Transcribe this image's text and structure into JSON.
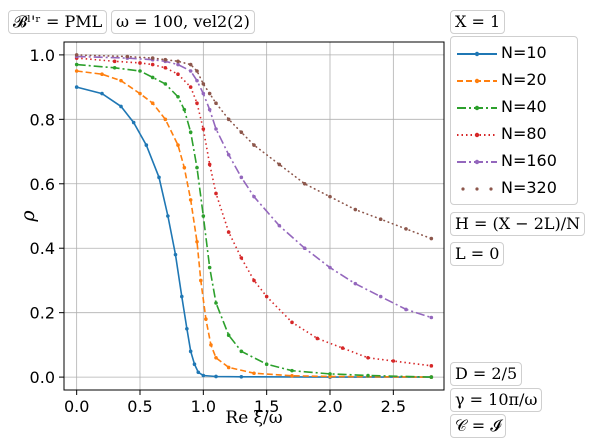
{
  "annotations": {
    "boundary": "𝓑ˡ'ʳ = PML",
    "omega_vel": "ω = 100, vel2(2)",
    "X": "X = 1",
    "H": "H = (X − 2L)/N",
    "L": "L = 0",
    "D": "D = 2/5",
    "gamma": "γ = 10π/ω",
    "C": "𝒞 = 𝓘"
  },
  "colors": {
    "N10": "#1f77b4",
    "N20": "#ff7f0e",
    "N40": "#2ca02c",
    "N80": "#d62728",
    "N160": "#9467bd",
    "N320": "#8c564b"
  },
  "chart_data": {
    "type": "line",
    "xlabel": "Re ξ/ω",
    "ylabel": "ρ",
    "xlim": [
      -0.1,
      2.9
    ],
    "ylim": [
      -0.04,
      1.04
    ],
    "xticks": [
      "0.0",
      "0.5",
      "1.0",
      "1.5",
      "2.0",
      "2.5"
    ],
    "yticks": [
      "0.0",
      "0.2",
      "0.4",
      "0.6",
      "0.8",
      "1.0"
    ],
    "grid": true,
    "legend_position": "right",
    "series": [
      {
        "name": "N=10",
        "color_key": "N10",
        "line_style": "solid",
        "marker": "dot",
        "x": [
          0.0,
          0.2,
          0.35,
          0.45,
          0.55,
          0.65,
          0.72,
          0.78,
          0.83,
          0.87,
          0.9,
          0.93,
          0.96,
          1.0,
          1.1,
          1.3,
          2.0,
          2.8
        ],
        "y": [
          0.9,
          0.88,
          0.84,
          0.79,
          0.72,
          0.62,
          0.5,
          0.38,
          0.25,
          0.15,
          0.08,
          0.04,
          0.015,
          0.005,
          0.002,
          0.001,
          0.0,
          0.0
        ]
      },
      {
        "name": "N=20",
        "color_key": "N20",
        "line_style": "dashed",
        "marker": "dot",
        "x": [
          0.0,
          0.2,
          0.35,
          0.5,
          0.6,
          0.7,
          0.8,
          0.85,
          0.9,
          0.95,
          0.98,
          1.02,
          1.06,
          1.1,
          1.2,
          1.4,
          1.7,
          2.0,
          2.8
        ],
        "y": [
          0.95,
          0.94,
          0.92,
          0.88,
          0.85,
          0.8,
          0.72,
          0.65,
          0.55,
          0.42,
          0.3,
          0.18,
          0.1,
          0.06,
          0.03,
          0.012,
          0.004,
          0.002,
          0.0
        ]
      },
      {
        "name": "N=40",
        "color_key": "N40",
        "line_style": "dashdot",
        "marker": "dot",
        "x": [
          0.0,
          0.3,
          0.5,
          0.6,
          0.7,
          0.8,
          0.85,
          0.9,
          0.95,
          1.0,
          1.05,
          1.1,
          1.2,
          1.3,
          1.5,
          1.7,
          2.0,
          2.3,
          2.8
        ],
        "y": [
          0.97,
          0.96,
          0.95,
          0.93,
          0.91,
          0.87,
          0.83,
          0.76,
          0.65,
          0.5,
          0.34,
          0.23,
          0.13,
          0.08,
          0.04,
          0.02,
          0.01,
          0.005,
          0.0
        ]
      },
      {
        "name": "N=80",
        "color_key": "N80",
        "line_style": "dotted",
        "marker": "dot",
        "x": [
          0.0,
          0.3,
          0.5,
          0.6,
          0.7,
          0.8,
          0.9,
          0.95,
          1.0,
          1.05,
          1.1,
          1.2,
          1.3,
          1.4,
          1.5,
          1.7,
          1.9,
          2.1,
          2.3,
          2.5,
          2.8
        ],
        "y": [
          0.99,
          0.98,
          0.975,
          0.97,
          0.96,
          0.94,
          0.9,
          0.85,
          0.77,
          0.66,
          0.57,
          0.45,
          0.37,
          0.3,
          0.25,
          0.17,
          0.12,
          0.09,
          0.06,
          0.05,
          0.035
        ]
      },
      {
        "name": "N=160",
        "color_key": "N160",
        "line_style": "dashdot",
        "marker": "dot",
        "x": [
          0.0,
          0.4,
          0.6,
          0.7,
          0.8,
          0.9,
          0.95,
          1.0,
          1.05,
          1.1,
          1.2,
          1.3,
          1.4,
          1.6,
          1.8,
          2.0,
          2.2,
          2.4,
          2.6,
          2.8
        ],
        "y": [
          0.995,
          0.99,
          0.985,
          0.98,
          0.97,
          0.95,
          0.92,
          0.88,
          0.83,
          0.77,
          0.69,
          0.62,
          0.56,
          0.47,
          0.4,
          0.34,
          0.29,
          0.25,
          0.21,
          0.185
        ]
      },
      {
        "name": "N=320",
        "color_key": "N320",
        "line_style": "dotted",
        "marker": "dot",
        "x": [
          0.0,
          0.4,
          0.6,
          0.7,
          0.8,
          0.9,
          0.95,
          1.0,
          1.05,
          1.1,
          1.2,
          1.3,
          1.4,
          1.6,
          1.8,
          2.0,
          2.2,
          2.4,
          2.6,
          2.8
        ],
        "y": [
          1.0,
          0.995,
          0.99,
          0.985,
          0.98,
          0.97,
          0.95,
          0.91,
          0.88,
          0.85,
          0.8,
          0.76,
          0.72,
          0.66,
          0.6,
          0.56,
          0.52,
          0.49,
          0.46,
          0.43
        ]
      }
    ]
  }
}
